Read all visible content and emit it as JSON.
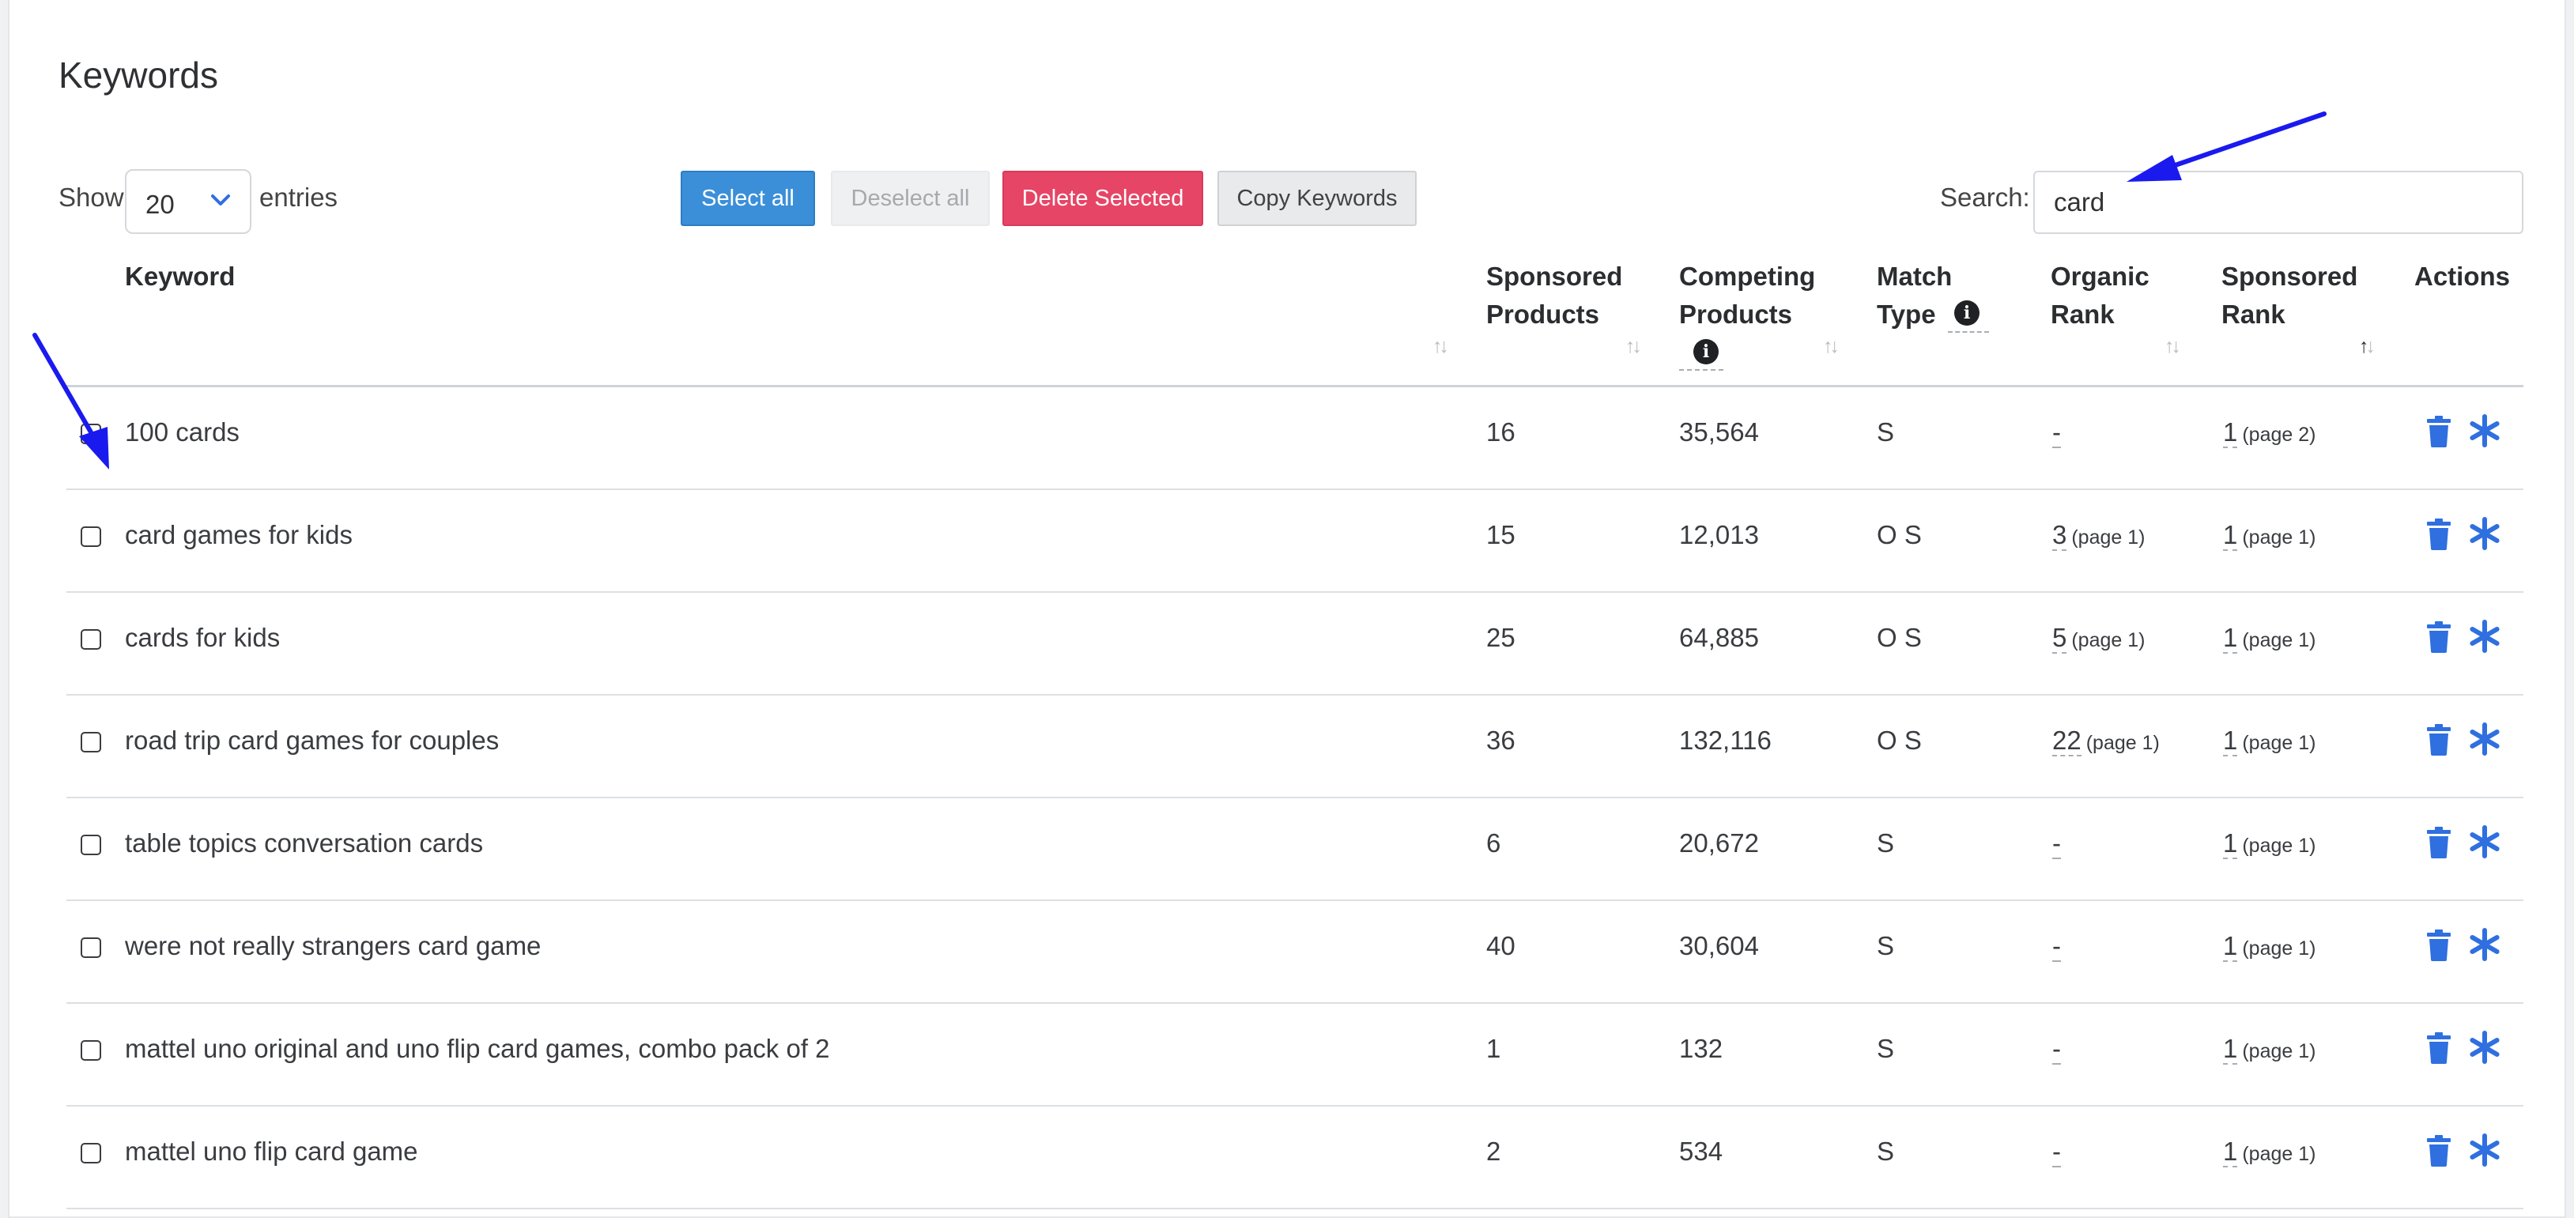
{
  "page": {
    "title": "Keywords"
  },
  "toolbar": {
    "show_label": "Show",
    "entries_value": "20",
    "entries_label": "entries",
    "select_all": "Select all",
    "deselect_all": "Deselect all",
    "delete_selected": "Delete Selected",
    "copy_keywords": "Copy Keywords",
    "search_label": "Search:",
    "search_value": "card"
  },
  "columns": {
    "keyword": "Keyword",
    "sponsored_products_1": "Sponsored",
    "sponsored_products_2": "Products",
    "competing_products_1": "Competing",
    "competing_products_2": "Products",
    "match_type_1": "Match",
    "match_type_2": "Type",
    "organic_rank_1": "Organic",
    "organic_rank_2": "Rank",
    "sponsored_rank_1": "Sponsored",
    "sponsored_rank_2": "Rank",
    "actions": "Actions"
  },
  "sort_glyph": {
    "up": "↑",
    "down": "↓"
  },
  "rows": [
    {
      "keyword": "100 cards",
      "sponsored_products": "16",
      "competing_products": "35,564",
      "match_type": "S",
      "organic_rank": "-",
      "organic_page": "",
      "sponsored_rank": "1",
      "sponsored_page": "(page 2)"
    },
    {
      "keyword": "card games for kids",
      "sponsored_products": "15",
      "competing_products": "12,013",
      "match_type": "O S",
      "organic_rank": "3",
      "organic_page": "(page 1)",
      "sponsored_rank": "1",
      "sponsored_page": "(page 1)"
    },
    {
      "keyword": "cards for kids",
      "sponsored_products": "25",
      "competing_products": "64,885",
      "match_type": "O S",
      "organic_rank": "5",
      "organic_page": "(page 1)",
      "sponsored_rank": "1",
      "sponsored_page": "(page 1)"
    },
    {
      "keyword": "road trip card games for couples",
      "sponsored_products": "36",
      "competing_products": "132,116",
      "match_type": "O S",
      "organic_rank": "22",
      "organic_page": "(page 1)",
      "sponsored_rank": "1",
      "sponsored_page": "(page 1)"
    },
    {
      "keyword": "table topics conversation cards",
      "sponsored_products": "6",
      "competing_products": "20,672",
      "match_type": "S",
      "organic_rank": "-",
      "organic_page": "",
      "sponsored_rank": "1",
      "sponsored_page": "(page 1)"
    },
    {
      "keyword": "were not really strangers card game",
      "sponsored_products": "40",
      "competing_products": "30,604",
      "match_type": "S",
      "organic_rank": "-",
      "organic_page": "",
      "sponsored_rank": "1",
      "sponsored_page": "(page 1)"
    },
    {
      "keyword": "mattel uno original and uno flip card games, combo pack of 2",
      "sponsored_products": "1",
      "competing_products": "132",
      "match_type": "S",
      "organic_rank": "-",
      "organic_page": "",
      "sponsored_rank": "1",
      "sponsored_page": "(page 1)"
    },
    {
      "keyword": "mattel uno flip card game",
      "sponsored_products": "2",
      "competing_products": "534",
      "match_type": "S",
      "organic_rank": "-",
      "organic_page": "",
      "sponsored_rank": "1",
      "sponsored_page": "(page 1)"
    }
  ],
  "colors": {
    "primary": "#3b8fd9",
    "danger": "#e64566",
    "action_icon": "#2f6fe0",
    "annotation_arrow": "#1a1aef"
  },
  "icons": [
    "chevron-down-icon",
    "info-icon",
    "sort-icon",
    "trash-icon",
    "asterisk-icon",
    "annotation-arrow"
  ]
}
